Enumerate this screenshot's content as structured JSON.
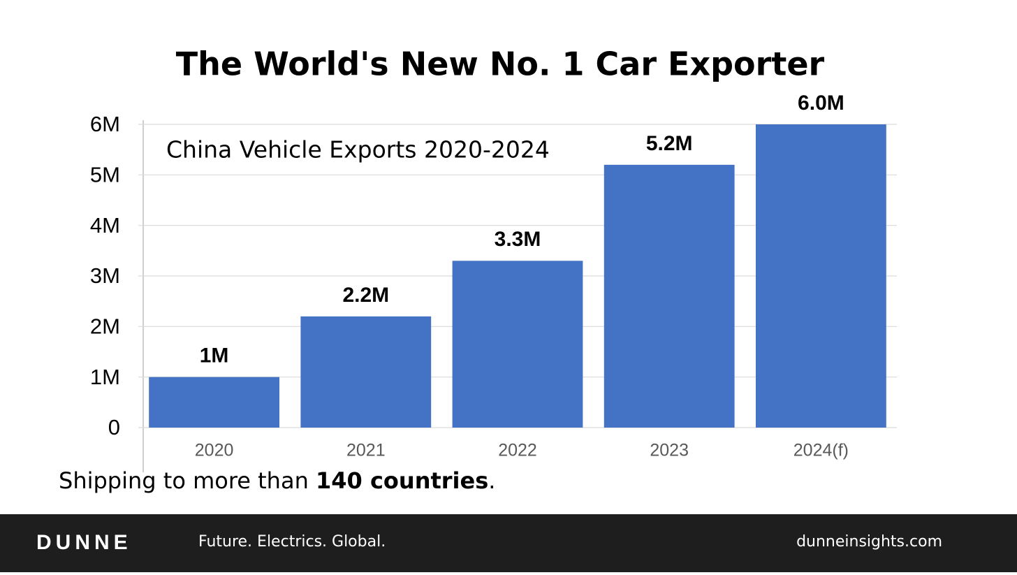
{
  "chart_data": {
    "type": "bar",
    "title": "The World's New No. 1 Car Exporter",
    "annotation": "China Vehicle Exports 2020-2024",
    "categories": [
      "2020",
      "2021",
      "2022",
      "2023",
      "2024(f)"
    ],
    "values": [
      1,
      2.2,
      3.3,
      5.2,
      6.0
    ],
    "value_labels": [
      "1M",
      "2.2M",
      "3.3M",
      "5.2M",
      "6.0M"
    ],
    "color": "#4472c4",
    "ylim": [
      0,
      6
    ],
    "yticks": [
      0,
      {
        "value": 1,
        "label": "1M"
      },
      {
        "value": 2,
        "label": "2M"
      },
      {
        "value": 3,
        "label": "3M"
      },
      {
        "value": 4,
        "label": "4M"
      },
      {
        "value": 5,
        "label": "5M"
      },
      {
        "value": 6,
        "label": "6M"
      }
    ],
    "grid": true
  },
  "caption": [
    "Shipping to more than ",
    "140 countries",
    "."
  ],
  "footer": {
    "brand": "DUNNE",
    "tagline": "Future. Electrics. Global.",
    "url": "dunneinsights.com"
  }
}
